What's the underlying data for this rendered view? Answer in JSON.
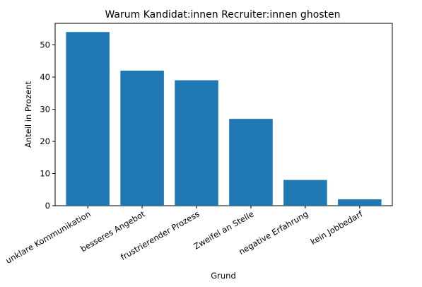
{
  "chart_data": {
    "type": "bar",
    "title": "Warum Kandidat:innen Recruiter:innen ghosten",
    "xlabel": "Grund",
    "ylabel": "Anteil in Prozent",
    "categories": [
      "unklare Kommunikation",
      "besseres Angebot",
      "frustrierender Prozess",
      "Zweifel an Stelle",
      "negative Erfahrung",
      "kein Jobbedarf"
    ],
    "values": [
      54,
      42,
      39,
      27,
      8,
      2
    ],
    "ylim": [
      0,
      56.7
    ],
    "yticks": [
      "0",
      "10",
      "20",
      "30",
      "40",
      "50"
    ],
    "grid": false,
    "bar_color": "#1f77b4"
  }
}
